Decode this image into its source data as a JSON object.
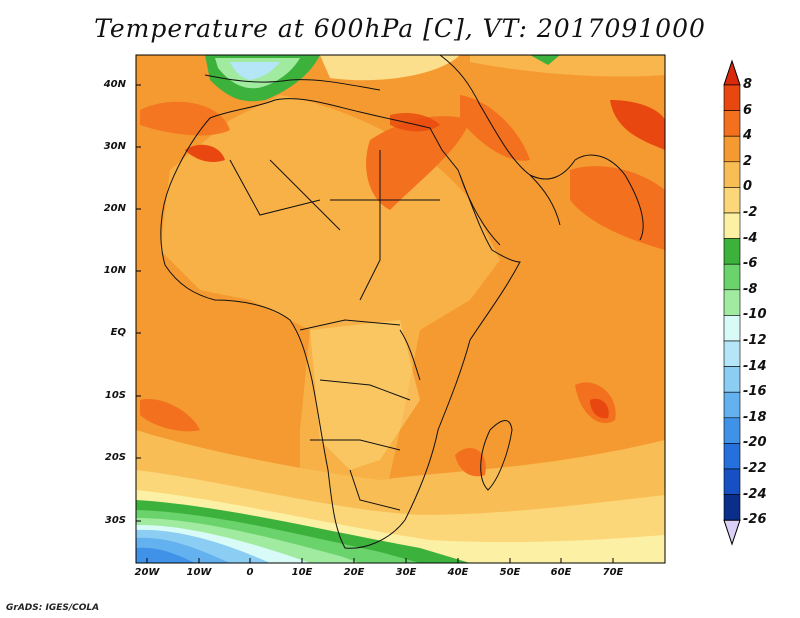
{
  "title": "Temperature at 600hPa [C], VT: 2017091000",
  "credit": "GrADS: IGES/COLA",
  "lat_labels": [
    "40N",
    "30N",
    "20N",
    "10N",
    "EQ",
    "10S",
    "20S",
    "30S"
  ],
  "lon_labels": [
    "20W",
    "10W",
    "0",
    "10E",
    "20E",
    "30E",
    "40E",
    "50E",
    "60E",
    "70E"
  ],
  "colorbar": {
    "labels": [
      "8",
      "6",
      "4",
      "2",
      "0",
      "-2",
      "-4",
      "-6",
      "-8",
      "-10",
      "-12",
      "-14",
      "-16",
      "-18",
      "-20",
      "-22",
      "-24",
      "-26"
    ],
    "colors": [
      "#e8480f",
      "#f3701f",
      "#f59a30",
      "#f9bd55",
      "#fbd779",
      "#fcf0a4",
      "#3cb23c",
      "#6bd36b",
      "#a0eba0",
      "#d8fbf7",
      "#b4e6f7",
      "#8ccdf4",
      "#63b1ee",
      "#4092e8",
      "#2570dc",
      "#1650c4",
      "#0a2f8a"
    ],
    "top_color": "#d92a0c",
    "bottom_color": "#dcd0f8"
  }
}
